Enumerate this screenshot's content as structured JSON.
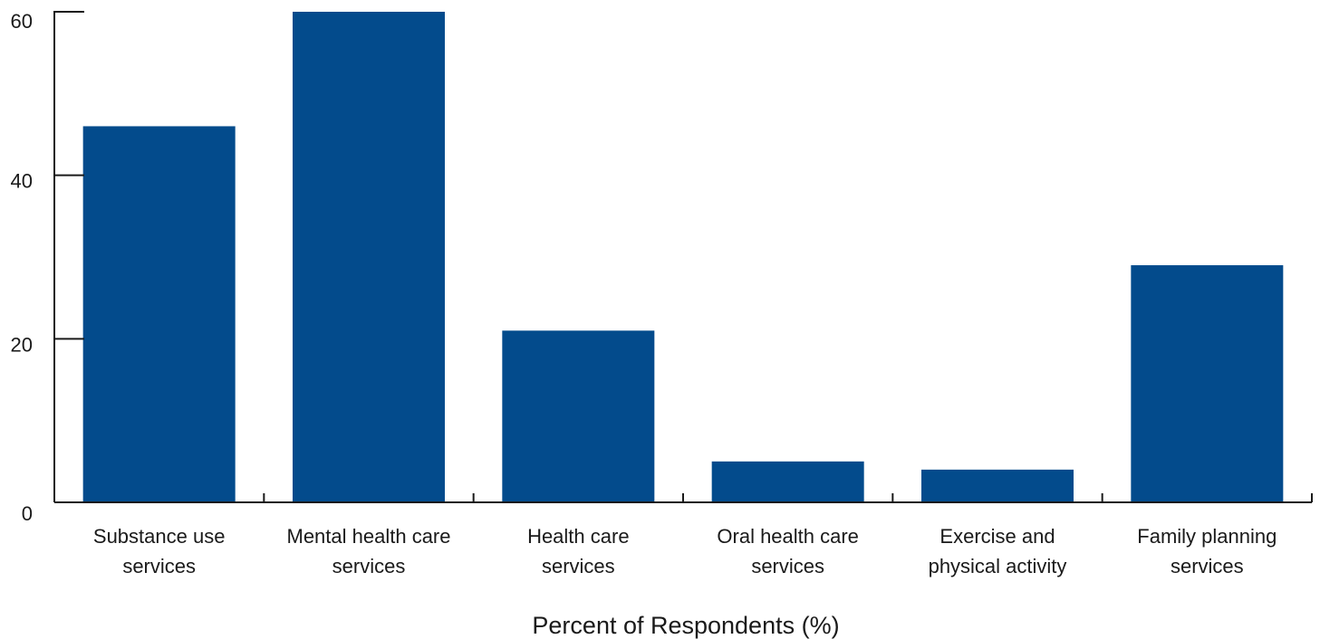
{
  "chart_data": {
    "type": "bar",
    "categories": [
      [
        "Substance use",
        "services"
      ],
      [
        "Mental health care",
        "services"
      ],
      [
        "Health care",
        "services"
      ],
      [
        "Oral health care",
        "services"
      ],
      [
        "Exercise and",
        "physical activity"
      ],
      [
        "Family planning",
        "services"
      ]
    ],
    "values": [
      46,
      60,
      21,
      5,
      4,
      29
    ],
    "title": "",
    "xlabel": "Percent of Respondents (%)",
    "ylabel": "",
    "ylim": [
      0,
      60
    ],
    "yticks": [
      0,
      20,
      40,
      60
    ],
    "grid": false,
    "colors": {
      "bar": "#034b8c",
      "axis": "#1a1a1a"
    }
  }
}
